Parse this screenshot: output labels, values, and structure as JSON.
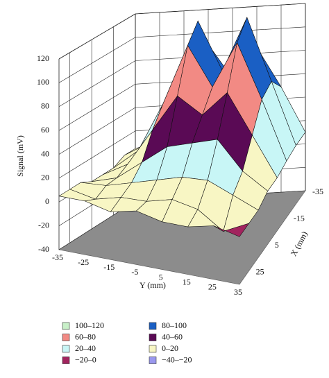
{
  "chart_data": {
    "type": "surface3d",
    "zlabel": "Signal (mV)",
    "ylabel": "Y (mm)",
    "xlabel": "X (mm)",
    "y": [
      -35,
      -25,
      -15,
      -5,
      5,
      15,
      25,
      35
    ],
    "x": [
      -35,
      -25,
      -15,
      -5,
      5,
      15,
      25,
      35
    ],
    "z": [
      [
        5,
        10,
        40,
        90,
        60,
        85,
        50,
        10
      ],
      [
        5,
        15,
        60,
        118,
        75,
        120,
        65,
        10
      ],
      [
        0,
        15,
        55,
        105,
        70,
        108,
        60,
        8
      ],
      [
        0,
        10,
        40,
        70,
        55,
        75,
        40,
        5
      ],
      [
        0,
        5,
        20,
        35,
        40,
        45,
        20,
        5
      ],
      [
        5,
        5,
        10,
        15,
        20,
        20,
        10,
        0
      ],
      [
        5,
        0,
        5,
        5,
        10,
        5,
        -10,
        0
      ],
      [
        5,
        5,
        0,
        5,
        0,
        0,
        5,
        0
      ]
    ],
    "zlim": [
      -40,
      120
    ],
    "zticks": [
      -40,
      -20,
      0,
      20,
      40,
      60,
      80,
      100,
      120
    ],
    "ylim": [
      -35,
      35
    ],
    "yticks": [
      -35,
      -25,
      -15,
      -5,
      5,
      15,
      25,
      35
    ],
    "xlim": [
      -35,
      35
    ],
    "xticks": [
      -35,
      -15,
      5,
      25
    ],
    "floor_color": "#8c8c8c",
    "bands": [
      {
        "label": "100–120",
        "min": 100,
        "max": 120,
        "color": "#c8f0c8"
      },
      {
        "label": "80–100",
        "min": 80,
        "max": 100,
        "color": "#1a5fc4"
      },
      {
        "label": "60–80",
        "min": 60,
        "max": 80,
        "color": "#f28a84"
      },
      {
        "label": "40–60",
        "min": 40,
        "max": 60,
        "color": "#5a0a55"
      },
      {
        "label": "20–40",
        "min": 20,
        "max": 40,
        "color": "#c8f6f6"
      },
      {
        "label": "0–20",
        "min": 0,
        "max": 20,
        "color": "#f8f6c4"
      },
      {
        "label": "−20–0",
        "min": -20,
        "max": 0,
        "color": "#a2245e"
      },
      {
        "label": "−40–−20",
        "min": -40,
        "max": -20,
        "color": "#9a98ee"
      }
    ]
  }
}
